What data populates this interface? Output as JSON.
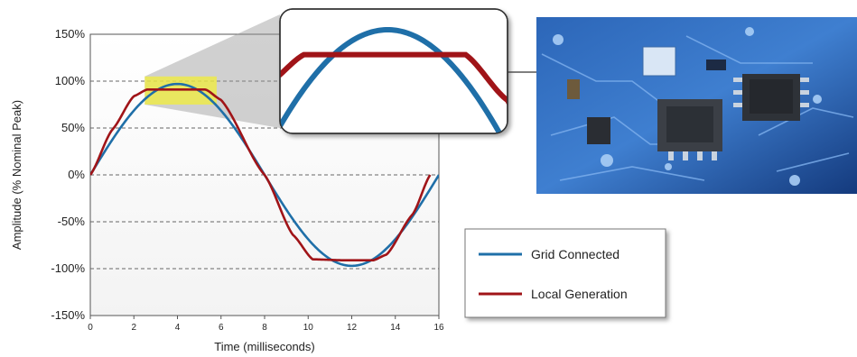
{
  "chart_data": {
    "type": "line",
    "xlabel": "Time (milliseconds)",
    "ylabel": "Amplitude (% Nominal Peak)",
    "xlim": [
      0,
      16
    ],
    "ylim": [
      -150,
      150
    ],
    "x_ticks": [
      "0",
      "2",
      "4",
      "6",
      "8",
      "10",
      "12",
      "14",
      "16"
    ],
    "y_ticks": [
      "150%",
      "100%",
      "50%",
      "0%",
      "-50%",
      "-100%",
      "-150%"
    ],
    "y_tick_values": [
      150,
      100,
      50,
      0,
      -50,
      -100,
      -150
    ],
    "dashed_gridlines_at": [
      100,
      50,
      0,
      -50,
      -100
    ],
    "legend_position": "bottom-right",
    "highlight_zoom": {
      "x_range": [
        2.5,
        5.8
      ],
      "y_range": [
        75,
        105
      ],
      "color": "#f2ee3a"
    },
    "series": [
      {
        "name": "Grid Connected",
        "color": "#1f6fa8",
        "shape": "sine",
        "period_ms": 16.0,
        "amplitude": 97
      },
      {
        "name": "Local Generation",
        "color": "#a01418",
        "shape": "flattened-sine",
        "period_ms": 15.6,
        "plateau": 91,
        "points_x": [
          0,
          1,
          2,
          2.6,
          4,
          5.3,
          6,
          8,
          9.3,
          10.2,
          11.5,
          13.0,
          13.6,
          14.8,
          15.6
        ],
        "points_y": [
          0,
          48,
          84,
          91,
          91,
          91,
          80,
          0,
          -64,
          -90,
          -91,
          -91,
          -85,
          -42,
          0
        ]
      }
    ]
  },
  "photo": {
    "subject": "circuit-board-photo",
    "tones": [
      "#1b4f9e",
      "#4a86cf",
      "#0d2f6b"
    ]
  }
}
